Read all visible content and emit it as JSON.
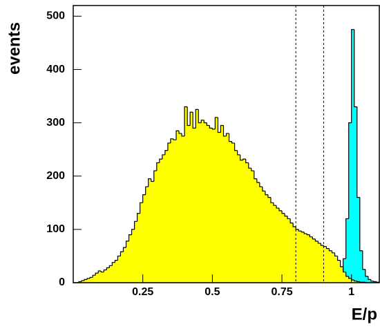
{
  "chart_data": {
    "type": "histogram",
    "x_label": "E/p",
    "y_label": "events",
    "bins": [
      0,
      0.01,
      0.02,
      0.03,
      0.04,
      0.05,
      0.06,
      0.07,
      0.08,
      0.09,
      0.1,
      0.11,
      0.12,
      0.13,
      0.14,
      0.15,
      0.16,
      0.17,
      0.18,
      0.19,
      0.2,
      0.21,
      0.22,
      0.23,
      0.24,
      0.25,
      0.26,
      0.27,
      0.28,
      0.29,
      0.3,
      0.31,
      0.32,
      0.33,
      0.34,
      0.35,
      0.36,
      0.37,
      0.38,
      0.39,
      0.4,
      0.41,
      0.42,
      0.43,
      0.44,
      0.45,
      0.46,
      0.47,
      0.48,
      0.49,
      0.5,
      0.51,
      0.52,
      0.53,
      0.54,
      0.55,
      0.56,
      0.57,
      0.58,
      0.59,
      0.6,
      0.61,
      0.62,
      0.63,
      0.64,
      0.65,
      0.66,
      0.67,
      0.68,
      0.69,
      0.7,
      0.71,
      0.72,
      0.73,
      0.74,
      0.75,
      0.76,
      0.77,
      0.78,
      0.79,
      0.8,
      0.81,
      0.82,
      0.83,
      0.84,
      0.85,
      0.86,
      0.87,
      0.88,
      0.89,
      0.9,
      0.91,
      0.92,
      0.93,
      0.94,
      0.95,
      0.96,
      0.97,
      0.98,
      0.99,
      1,
      1.01,
      1.02,
      1.03,
      1.04,
      1.05,
      1.06,
      1.07,
      1.08,
      1.09,
      1.1
    ],
    "series": [
      {
        "color": "#00ffff",
        "values": [
          0,
          0,
          0,
          0,
          0,
          0,
          0,
          0,
          0,
          0,
          0,
          0,
          0,
          0,
          0,
          0,
          0,
          0,
          0,
          0,
          0,
          0,
          0,
          0,
          0,
          0,
          0,
          0,
          0,
          0,
          0,
          0,
          0,
          0,
          0,
          0,
          0,
          0,
          0,
          0,
          0,
          0,
          0,
          0,
          0,
          0,
          0,
          0,
          0,
          0,
          0,
          0,
          0,
          0,
          0,
          0,
          0,
          0,
          0,
          0,
          0,
          0,
          0,
          0,
          0,
          0,
          0,
          0,
          0,
          0,
          0,
          0,
          0,
          0,
          0,
          0,
          0,
          0,
          0,
          0,
          0,
          0,
          0,
          0,
          0,
          1,
          1,
          2,
          2,
          3,
          3,
          4,
          5,
          6,
          8,
          12,
          20,
          45,
          120,
          300,
          475,
          330,
          160,
          60,
          25,
          12,
          6,
          3,
          2,
          1
        ]
      },
      {
        "color": "#ffff00",
        "values": [
          0,
          0,
          2,
          4,
          6,
          8,
          10,
          14,
          18,
          22,
          20,
          24,
          28,
          32,
          38,
          42,
          50,
          58,
          66,
          78,
          90,
          100,
          115,
          130,
          150,
          165,
          180,
          195,
          190,
          210,
          225,
          232,
          240,
          248,
          262,
          270,
          268,
          285,
          280,
          275,
          330,
          295,
          320,
          290,
          325,
          300,
          305,
          300,
          295,
          290,
          288,
          310,
          282,
          295,
          275,
          280,
          265,
          262,
          248,
          240,
          230,
          232,
          225,
          215,
          210,
          195,
          188,
          180,
          172,
          165,
          160,
          150,
          145,
          140,
          135,
          130,
          125,
          120,
          112,
          105,
          100,
          97,
          95,
          92,
          90,
          86,
          82,
          78,
          74,
          70,
          68,
          64,
          60,
          56,
          50,
          42,
          30,
          20,
          12,
          8,
          5,
          3,
          2,
          1,
          1,
          0,
          0,
          0,
          0,
          0
        ]
      }
    ],
    "cut_lines": [
      0.8,
      0.9
    ],
    "xlim": [
      0,
      1.1
    ],
    "ylim": [
      0,
      520
    ],
    "xticks": [
      0.25,
      0.5,
      0.75,
      1
    ],
    "yticks": [
      0,
      100,
      200,
      300,
      400,
      500
    ]
  }
}
